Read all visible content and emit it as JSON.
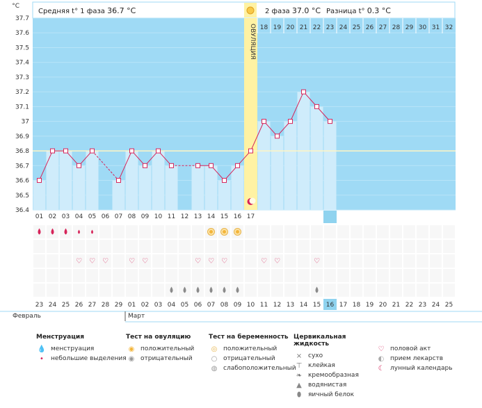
{
  "header": {
    "phase1_label": "Средняя t° 1 фаза",
    "phase1_value": "36.7 °C",
    "phase2_label": "2 фаза",
    "phase2_value": "37.0 °C",
    "diff_label": "Разница t°",
    "diff_value": "0.3 °C"
  },
  "ovulation_label": "ОВУЛЯЦИЯ",
  "colors": {
    "sky": "#9fdaf5",
    "bar": "#cfecfb",
    "ovulation": "#fff2a3",
    "line": "#d6245a",
    "coverline": "#fff5c4",
    "red_day": "#d6245a",
    "today": "#8fd3ef"
  },
  "chart_data": {
    "type": "line",
    "title": "",
    "ylabel": "°C",
    "ylim": [
      36.4,
      37.7
    ],
    "y_ticks": [
      "37.7",
      "37.6",
      "37.5",
      "37.4",
      "37.3",
      "37.2",
      "37.1",
      "37",
      "36.9",
      "36.8",
      "36.7",
      "36.6",
      "36.5",
      "36.4"
    ],
    "cycle_days": [
      "01",
      "02",
      "03",
      "04",
      "05",
      "06",
      "07",
      "08",
      "09",
      "10",
      "11",
      "12",
      "13",
      "14",
      "15",
      "16",
      "17",
      "18",
      "19",
      "20",
      "21",
      "22",
      "23",
      "24",
      "25",
      "26",
      "27",
      "28",
      "29",
      "30",
      "31",
      "32"
    ],
    "temperatures": [
      36.6,
      36.8,
      36.8,
      36.7,
      36.8,
      null,
      36.6,
      36.8,
      36.7,
      36.8,
      36.7,
      null,
      36.7,
      36.7,
      36.6,
      36.7,
      36.8,
      37.0,
      36.9,
      37.0,
      37.2,
      37.1,
      37.0,
      null,
      null,
      null,
      null,
      null,
      null,
      null,
      null,
      null
    ],
    "cover_line": 36.8,
    "ovulation_day": "17",
    "current_day": "23",
    "dates": [
      "23",
      "24",
      "25",
      "26",
      "27",
      "28",
      "29",
      "01",
      "02",
      "03",
      "04",
      "05",
      "06",
      "07",
      "08",
      "09",
      "10",
      "11",
      "12",
      "13",
      "14",
      "15",
      "16",
      "17",
      "18",
      "19",
      "20",
      "21",
      "22",
      "23",
      "24",
      "25"
    ],
    "red_dates": [
      2,
      3,
      9,
      10,
      16,
      17,
      23,
      24,
      30,
      31
    ],
    "current_date_index": 22,
    "months": [
      "Февраль",
      "Март"
    ],
    "month_start_index": 7,
    "events": {
      "menstruation": [
        0,
        1,
        2
      ],
      "spotting": [
        3,
        4
      ],
      "ovulation_test_positive": [
        13,
        14,
        15
      ],
      "intercourse": [
        3,
        4,
        5,
        7,
        8,
        12,
        13,
        14,
        17,
        18,
        21
      ],
      "cervical_watery": [
        10,
        11,
        12,
        13,
        14,
        15,
        21
      ]
    }
  },
  "legend": [
    {
      "title": "Менструация",
      "items": [
        {
          "icon": "menstruation-drop-icon",
          "label": "менструация"
        },
        {
          "icon": "spotting-drop-icon",
          "label": "небольшие выделения"
        }
      ]
    },
    {
      "title": "Тест на овуляцию",
      "items": [
        {
          "icon": "ovulation-positive-icon",
          "label": "положительный"
        },
        {
          "icon": "ovulation-negative-icon",
          "label": "отрицательный"
        }
      ]
    },
    {
      "title": "Тест на беременность",
      "items": [
        {
          "icon": "pregnancy-positive-icon",
          "label": "положительный"
        },
        {
          "icon": "pregnancy-negative-icon",
          "label": "отрицательный"
        },
        {
          "icon": "pregnancy-weak-icon",
          "label": "слабоположительный"
        }
      ]
    },
    {
      "title": "Цервикальная жидкость",
      "items": [
        {
          "icon": "dry-icon",
          "label": "сухо"
        },
        {
          "icon": "sticky-icon",
          "label": "клейкая"
        },
        {
          "icon": "creamy-icon",
          "label": "кремообразная"
        },
        {
          "icon": "watery-icon",
          "label": "водянистая"
        },
        {
          "icon": "egg-white-icon",
          "label": "яичный белок"
        }
      ]
    },
    {
      "title": "",
      "items": [
        {
          "icon": "heart-icon",
          "label": "половой акт"
        },
        {
          "icon": "pill-icon",
          "label": "прием лекарств"
        },
        {
          "icon": "moon-icon",
          "label": "лунный календарь"
        }
      ]
    }
  ]
}
